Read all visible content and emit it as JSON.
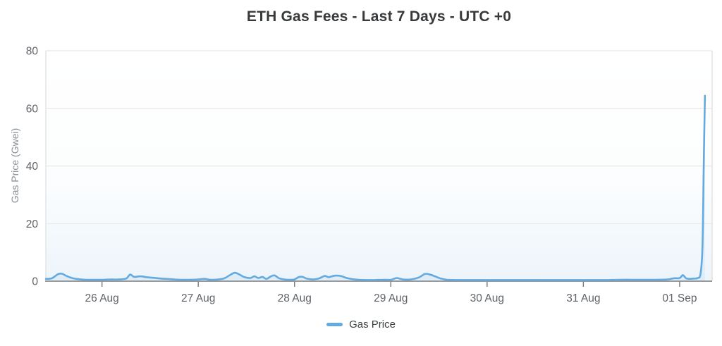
{
  "title": "ETH Gas Fees - Last 7 Days - UTC +0",
  "legend": {
    "items": [
      {
        "label": "Gas Price",
        "color": "#64aadf"
      }
    ],
    "position": "bottom"
  },
  "y_axis": {
    "title": "Gas Price (Gwei)",
    "ticks": [
      0,
      20,
      40,
      60,
      80
    ]
  },
  "x_axis": {
    "tick_labels": [
      "26 Aug",
      "27 Aug",
      "28 Aug",
      "29 Aug",
      "30 Aug",
      "31 Aug",
      "01 Sep"
    ],
    "tick_hours": [
      14,
      38,
      62,
      86,
      110,
      134,
      158
    ]
  },
  "chart_data": {
    "type": "line",
    "title": "ETH Gas Fees - Last 7 Days - UTC +0",
    "xlabel": "",
    "ylabel": "Gas Price (Gwei)",
    "ylim": [
      0,
      80
    ],
    "y_ticks": [
      0,
      20,
      40,
      60,
      80
    ],
    "x_tick_labels": [
      "26 Aug",
      "27 Aug",
      "28 Aug",
      "29 Aug",
      "30 Aug",
      "31 Aug",
      "01 Sep"
    ],
    "x_tick_hours": [
      14,
      38,
      62,
      86,
      110,
      134,
      158
    ],
    "x_unit": "hours (UTC+0), 0 = approx 25 Aug 10:00, day ticks at midnight",
    "x_range_hours": [
      0,
      166.1
    ],
    "grid": true,
    "legend_position": "bottom",
    "series": [
      {
        "name": "Gas Price",
        "color": "#64aadf",
        "points": [
          [
            0,
            0.8
          ],
          [
            1.5,
            1.0
          ],
          [
            3,
            2.4
          ],
          [
            4,
            2.6
          ],
          [
            5,
            1.9
          ],
          [
            6.5,
            1.1
          ],
          [
            8,
            0.7
          ],
          [
            10,
            0.5
          ],
          [
            12,
            0.5
          ],
          [
            14,
            0.5
          ],
          [
            16,
            0.6
          ],
          [
            18,
            0.6
          ],
          [
            20,
            0.9
          ],
          [
            21,
            2.3
          ],
          [
            22,
            1.5
          ],
          [
            23.5,
            1.7
          ],
          [
            25,
            1.4
          ],
          [
            26.5,
            1.2
          ],
          [
            28,
            1.0
          ],
          [
            30,
            0.8
          ],
          [
            32,
            0.6
          ],
          [
            34,
            0.5
          ],
          [
            36,
            0.5
          ],
          [
            38,
            0.6
          ],
          [
            39.5,
            0.8
          ],
          [
            41,
            0.5
          ],
          [
            43,
            0.6
          ],
          [
            44.5,
            1.0
          ],
          [
            46,
            2.2
          ],
          [
            47,
            2.9
          ],
          [
            48,
            2.5
          ],
          [
            49.5,
            1.4
          ],
          [
            51,
            1.1
          ],
          [
            52,
            1.7
          ],
          [
            53,
            1.1
          ],
          [
            54,
            1.5
          ],
          [
            55,
            0.8
          ],
          [
            56,
            1.6
          ],
          [
            57,
            2.0
          ],
          [
            58,
            1.1
          ],
          [
            59,
            0.7
          ],
          [
            60.5,
            0.5
          ],
          [
            62,
            0.6
          ],
          [
            63,
            1.4
          ],
          [
            64,
            1.5
          ],
          [
            65,
            0.9
          ],
          [
            66.5,
            0.6
          ],
          [
            68,
            0.9
          ],
          [
            69.5,
            1.8
          ],
          [
            70.5,
            1.4
          ],
          [
            72,
            1.9
          ],
          [
            73.5,
            1.8
          ],
          [
            75,
            1.1
          ],
          [
            76.5,
            0.7
          ],
          [
            78,
            0.5
          ],
          [
            80,
            0.4
          ],
          [
            82,
            0.4
          ],
          [
            84,
            0.5
          ],
          [
            86,
            0.5
          ],
          [
            87.5,
            1.1
          ],
          [
            89,
            0.6
          ],
          [
            91,
            0.6
          ],
          [
            93,
            1.3
          ],
          [
            94.5,
            2.5
          ],
          [
            95.5,
            2.4
          ],
          [
            97,
            1.7
          ],
          [
            98.5,
            0.9
          ],
          [
            100,
            0.5
          ],
          [
            102,
            0.4
          ],
          [
            105,
            0.4
          ],
          [
            108,
            0.4
          ],
          [
            110,
            0.4
          ],
          [
            113,
            0.4
          ],
          [
            116,
            0.4
          ],
          [
            120,
            0.4
          ],
          [
            124,
            0.4
          ],
          [
            128,
            0.4
          ],
          [
            131,
            0.4
          ],
          [
            134,
            0.4
          ],
          [
            137,
            0.4
          ],
          [
            140,
            0.4
          ],
          [
            143,
            0.5
          ],
          [
            146,
            0.5
          ],
          [
            149,
            0.5
          ],
          [
            152,
            0.5
          ],
          [
            155,
            0.6
          ],
          [
            156.5,
            1.0
          ],
          [
            158,
            1.1
          ],
          [
            158.8,
            2.1
          ],
          [
            159.6,
            1.0
          ],
          [
            160.5,
            0.8
          ],
          [
            161.5,
            0.9
          ],
          [
            162.5,
            1.1
          ],
          [
            163.2,
            2.5
          ],
          [
            163.7,
            12
          ],
          [
            164.0,
            40
          ],
          [
            164.3,
            64.4
          ]
        ]
      }
    ]
  },
  "colors": {
    "line": "#64aadf",
    "grid": "#ececec",
    "plot_border": "#e2e2e2",
    "axis_line": "#8c8c8c",
    "tick_mark": "#7a7a7a",
    "tick_label": "#5f6368",
    "title_text": "#37393b",
    "y_title_text": "#8a9097",
    "area_glow": "#64aadf"
  }
}
